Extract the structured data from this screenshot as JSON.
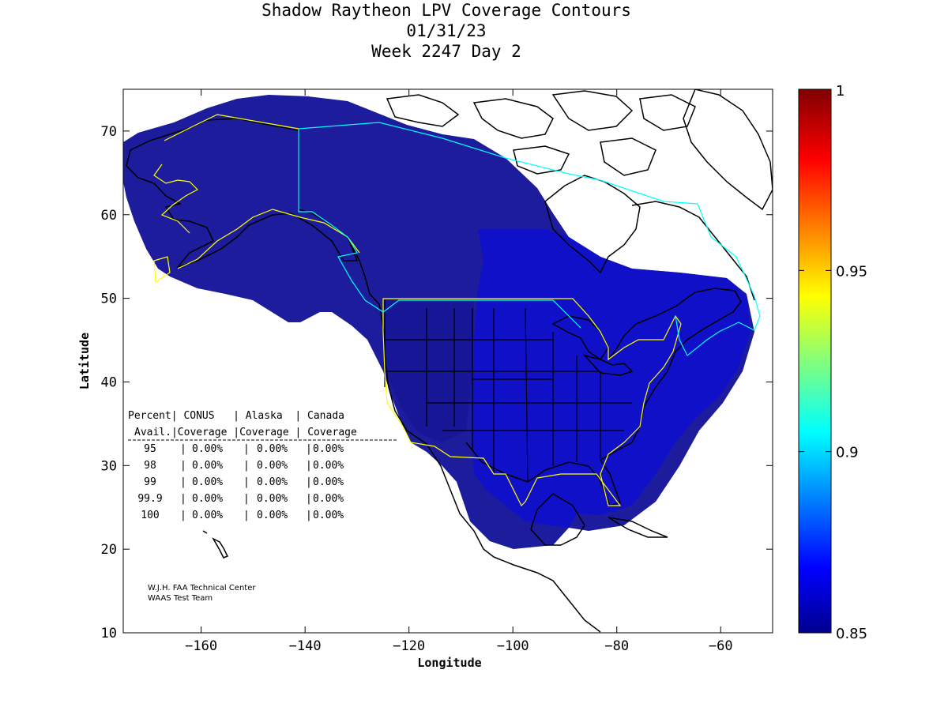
{
  "chart_data": {
    "type": "heatmap",
    "title_lines": [
      "Shadow Raytheon LPV Coverage Contours",
      "01/31/23",
      "Week 2247 Day 2"
    ],
    "xlabel": "Longitude",
    "ylabel": "Latitude",
    "xlim": [
      -175,
      -50
    ],
    "ylim": [
      10,
      75
    ],
    "xticks": [
      -160,
      -140,
      -120,
      -100,
      -80,
      -60
    ],
    "yticks": [
      10,
      20,
      30,
      40,
      50,
      60,
      70
    ],
    "colorbar": {
      "min": 0.85,
      "max": 1,
      "ticks": [
        0.85,
        0.9,
        0.95,
        1
      ],
      "colors": [
        "#00008f",
        "#0000ff",
        "#00ffff",
        "#ffff00",
        "#ff0000",
        "#800000"
      ]
    },
    "table": {
      "header1": [
        "Percent",
        "CONUS",
        "Alaska",
        "Canada"
      ],
      "header2": [
        "Avail.",
        "Coverage",
        "Coverage",
        "Coverage"
      ],
      "rows": [
        [
          "95",
          "0.00%",
          "0.00%",
          "0.00%"
        ],
        [
          "98",
          "0.00%",
          "0.00%",
          "0.00%"
        ],
        [
          "99",
          "0.00%",
          "0.00%",
          "0.00%"
        ],
        [
          "99.9",
          "0.00%",
          "0.00%",
          "0.00%"
        ],
        [
          "100",
          "0.00%",
          "0.00%",
          "0.00%"
        ]
      ]
    },
    "credit_lines": [
      "W.J.H. FAA Technical Center",
      "WAAS Test Team"
    ]
  }
}
